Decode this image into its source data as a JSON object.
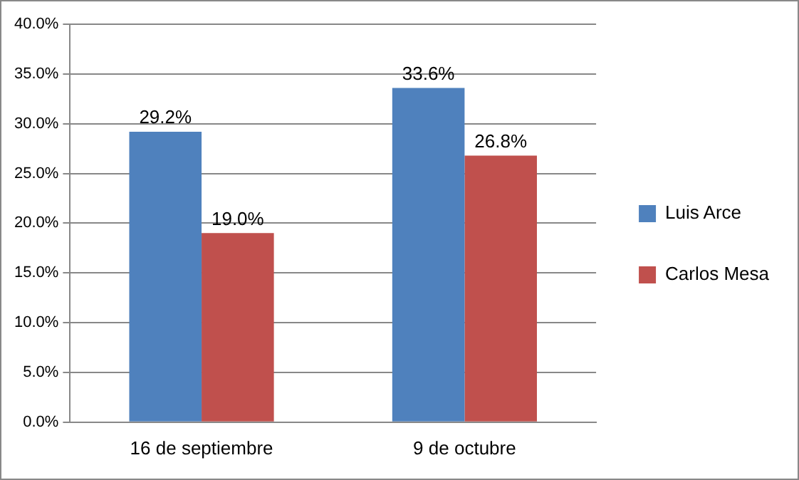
{
  "chart_data": {
    "type": "bar",
    "categories": [
      "16 de septiembre",
      "9 de octubre"
    ],
    "series": [
      {
        "name": "Luis Arce",
        "color": "#4f81bd",
        "values": [
          29.2,
          33.6
        ],
        "value_labels": [
          "29.2%",
          "33.6%"
        ]
      },
      {
        "name": "Carlos Mesa",
        "color": "#c0504d",
        "values": [
          19.0,
          26.8
        ],
        "value_labels": [
          "19.0%",
          "26.8%"
        ]
      }
    ],
    "ylim": [
      0,
      40
    ],
    "yticks": [
      {
        "value": 0,
        "label": "0.0%"
      },
      {
        "value": 5,
        "label": "5.0%"
      },
      {
        "value": 10,
        "label": "10.0%"
      },
      {
        "value": 15,
        "label": "15.0%"
      },
      {
        "value": 20,
        "label": "20.0%"
      },
      {
        "value": 25,
        "label": "25.0%"
      },
      {
        "value": 30,
        "label": "30.0%"
      },
      {
        "value": 35,
        "label": "35.0%"
      },
      {
        "value": 40,
        "label": "40.0%"
      }
    ],
    "grid": "y",
    "legend": "right"
  }
}
